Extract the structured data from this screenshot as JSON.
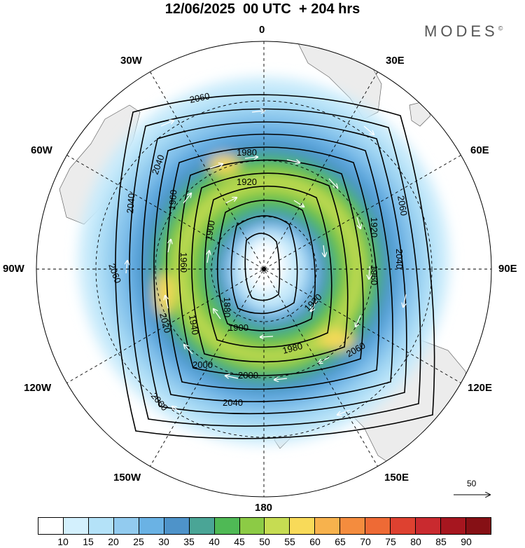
{
  "title": "12/06/2025  00 UTC  + 204 hrs",
  "logo": "MODES",
  "logo_mark": "©",
  "lon_labels": {
    "top": "0",
    "bottom": "180",
    "right": "90E",
    "left": "90W",
    "upper_right": "30E",
    "upper_left": "30W",
    "mid_right_upper": "60E",
    "mid_left_upper": "60W",
    "mid_right_lower": "120E",
    "mid_left_lower": "120W",
    "lower_right": "150E",
    "lower_left": "150W"
  },
  "contour_labels": [
    "2060",
    "1980",
    "1920",
    "1900",
    "1880",
    "1860",
    "1940",
    "2040",
    "2020",
    "2000",
    "1960"
  ],
  "reference_vector_label": "50",
  "colorbar": {
    "levels": [
      "10",
      "15",
      "20",
      "25",
      "30",
      "35",
      "40",
      "45",
      "50",
      "55",
      "60",
      "65",
      "70",
      "75",
      "80",
      "85",
      "90"
    ],
    "colors": [
      "#ffffff",
      "#d3f0fd",
      "#b4e2f8",
      "#92cbef",
      "#6ab2e4",
      "#4e93c9",
      "#4aa596",
      "#4fb955",
      "#8ccb45",
      "#c6dc52",
      "#f8da59",
      "#f7b24d",
      "#f48c3e",
      "#ee6a35",
      "#de4130",
      "#c92a2f",
      "#a6161f",
      "#861015"
    ]
  }
}
